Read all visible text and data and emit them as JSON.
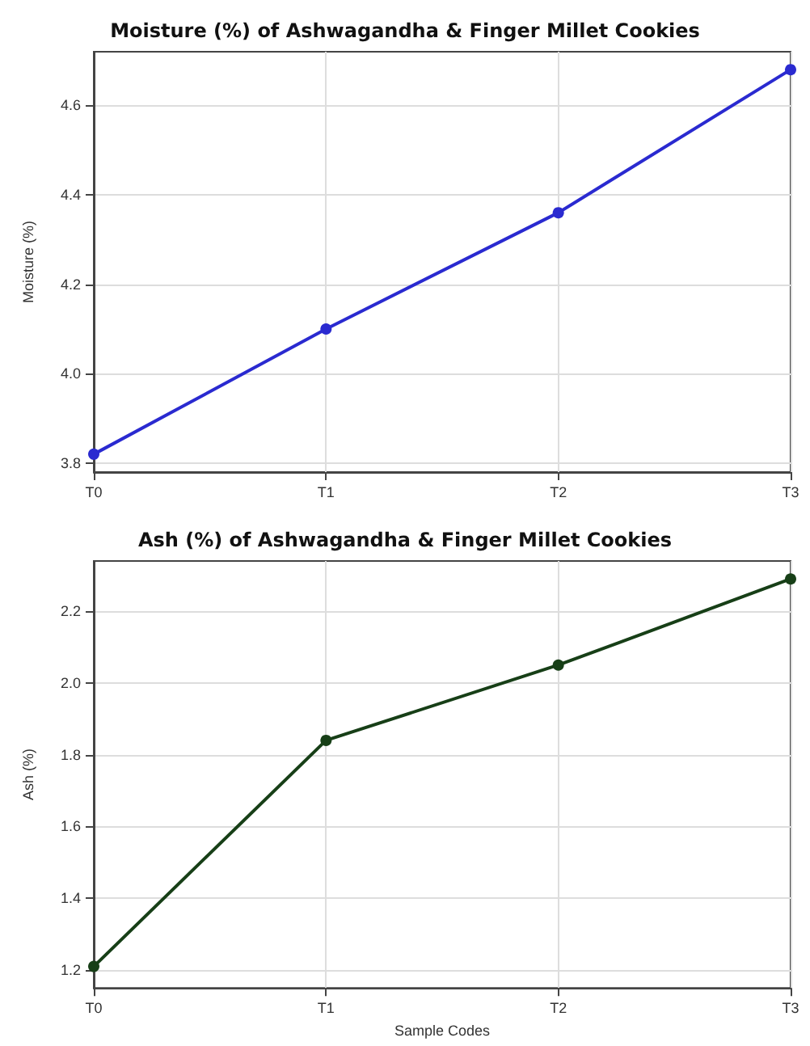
{
  "chart_data": [
    {
      "type": "line",
      "title": "Moisture (%) of Ashwagandha & Finger Millet Cookies",
      "ylabel": "Moisture (%)",
      "categories": [
        "T0",
        "T1",
        "T2",
        "T3"
      ],
      "series": [
        {
          "color": "#2a2ad0",
          "values": [
            3.82,
            4.1,
            4.36,
            4.68
          ]
        }
      ],
      "ylim": [
        3.78,
        4.72
      ],
      "yticks": [
        {
          "value": 3.8,
          "label": "3.8"
        },
        {
          "value": 4.0,
          "label": "4.0"
        },
        {
          "value": 4.2,
          "label": "4.2"
        },
        {
          "value": 4.4,
          "label": "4.4"
        },
        {
          "value": 4.6,
          "label": "4.6"
        }
      ],
      "grid": true,
      "marker": "circle",
      "line_style": "solid"
    },
    {
      "type": "line",
      "title": "Ash (%) of Ashwagandha & Finger Millet Cookies",
      "xlabel": "Sample Codes",
      "ylabel": "Ash (%)",
      "categories": [
        "T0",
        "T1",
        "T2",
        "T3"
      ],
      "series": [
        {
          "color": "#173f17",
          "values": [
            1.21,
            1.84,
            2.05,
            2.29
          ]
        }
      ],
      "ylim": [
        1.15,
        2.34
      ],
      "yticks": [
        {
          "value": 1.2,
          "label": "1.2"
        },
        {
          "value": 1.4,
          "label": "1.4"
        },
        {
          "value": 1.6,
          "label": "1.6"
        },
        {
          "value": 1.8,
          "label": "1.8"
        },
        {
          "value": 2.0,
          "label": "2.0"
        },
        {
          "value": 2.2,
          "label": "2.2"
        }
      ],
      "grid": true,
      "marker": "circle",
      "line_style": "solid"
    }
  ]
}
